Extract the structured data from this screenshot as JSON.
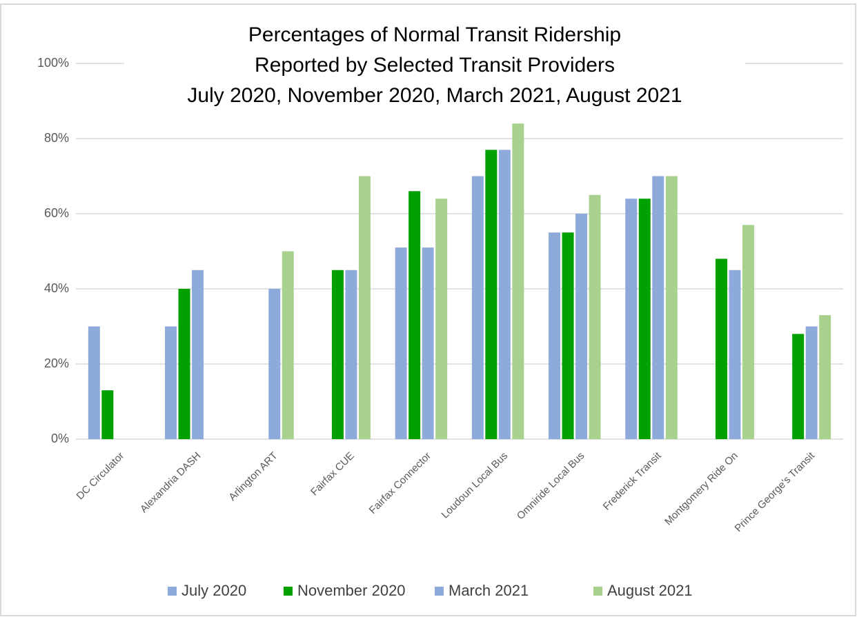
{
  "chart_data": {
    "type": "bar",
    "title": [
      "Percentages of Normal Transit Ridership",
      "Reported by Selected Transit Providers",
      "July 2020, November 2020, March 2021, August 2021"
    ],
    "categories": [
      "DC Circulator",
      "Alexandria DASH",
      "Arlington ART",
      "Fairfax CUE",
      "Fairfax Connector",
      "Loudoun Local Bus",
      "Omniride Local Bus",
      "Frederick Transit",
      "Montgomery Ride On",
      "Prince George's Transit"
    ],
    "series": [
      {
        "name": "July 2020",
        "color": "#8eaadb",
        "values": [
          30,
          30,
          null,
          null,
          51,
          70,
          55,
          64,
          null,
          null
        ]
      },
      {
        "name": "November 2020",
        "color": "#00a000",
        "values": [
          13,
          40,
          null,
          45,
          66,
          77,
          55,
          64,
          48,
          28
        ]
      },
      {
        "name": "March 2021",
        "color": "#8eaadb",
        "values": [
          null,
          45,
          40,
          45,
          51,
          77,
          60,
          70,
          45,
          30
        ]
      },
      {
        "name": "August 2021",
        "color": "#a9d18e",
        "values": [
          null,
          null,
          50,
          70,
          64,
          84,
          65,
          70,
          57,
          33
        ]
      }
    ],
    "ylim": [
      0,
      100
    ],
    "yticks": [
      {
        "value": 0,
        "label": "0%"
      },
      {
        "value": 20,
        "label": "20%"
      },
      {
        "value": 40,
        "label": "40%"
      },
      {
        "value": 60,
        "label": "60%"
      },
      {
        "value": 80,
        "label": "80%"
      },
      {
        "value": 100,
        "label": "100%"
      }
    ],
    "grid": true,
    "legend": "bottom"
  }
}
